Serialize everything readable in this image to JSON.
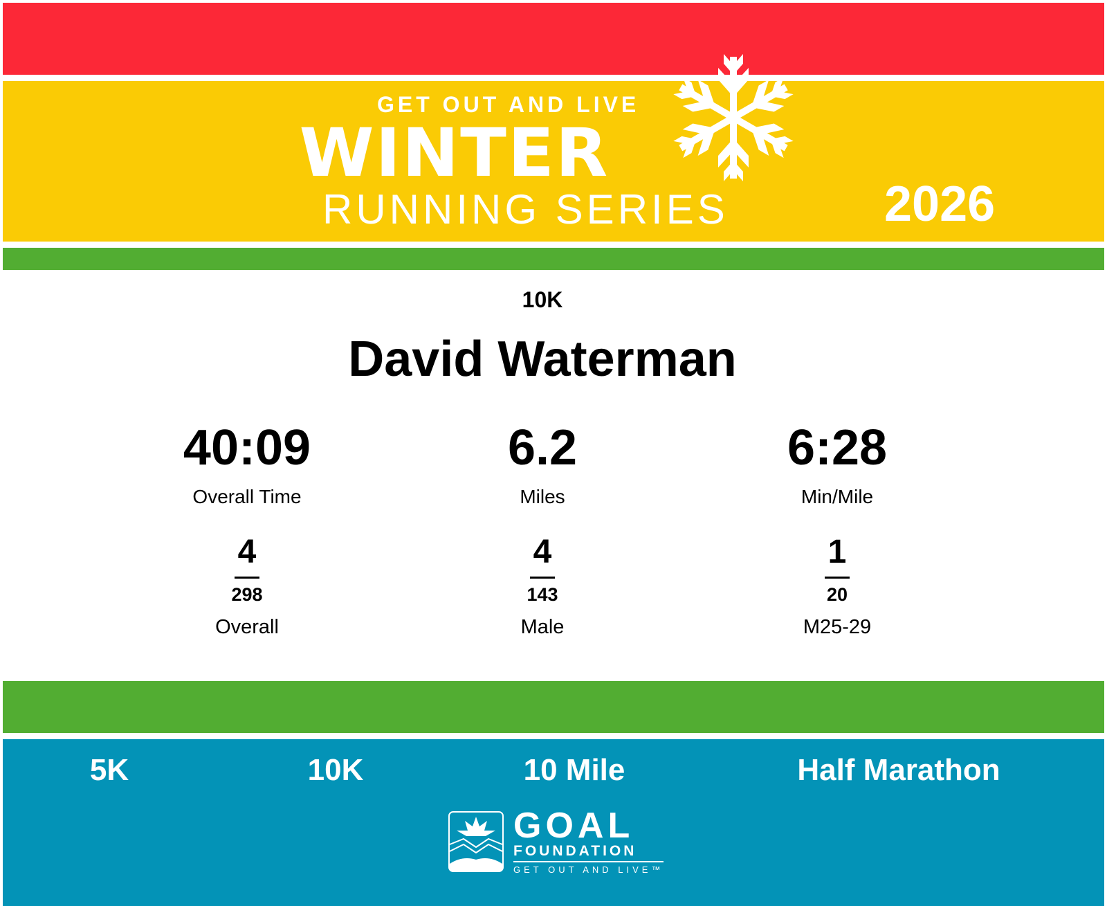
{
  "header": {
    "tagline": "GET OUT AND LIVE",
    "title": "WINTER",
    "subtitle": "RUNNING SERIES",
    "year": "2026",
    "colors": {
      "red": "#fc2837",
      "yellow": "#facb05",
      "green": "#52ad32",
      "blue": "#0393b7"
    }
  },
  "result": {
    "distance": "10K",
    "runner_name": "David Waterman",
    "stats": [
      {
        "value": "40:09",
        "label": "Overall Time"
      },
      {
        "value": "6.2",
        "label": "Miles"
      },
      {
        "value": "6:28",
        "label": "Min/Mile"
      }
    ],
    "ranks": [
      {
        "place": "4",
        "total": "298",
        "category": "Overall"
      },
      {
        "place": "4",
        "total": "143",
        "category": "Male"
      },
      {
        "place": "1",
        "total": "20",
        "category": "M25-29"
      }
    ]
  },
  "footer": {
    "events": [
      "5K",
      "10K",
      "10 Mile",
      "Half Marathon"
    ],
    "logo": {
      "name": "GOAL",
      "sub": "FOUNDATION",
      "tagline": "GET OUT AND LIVE™"
    }
  }
}
